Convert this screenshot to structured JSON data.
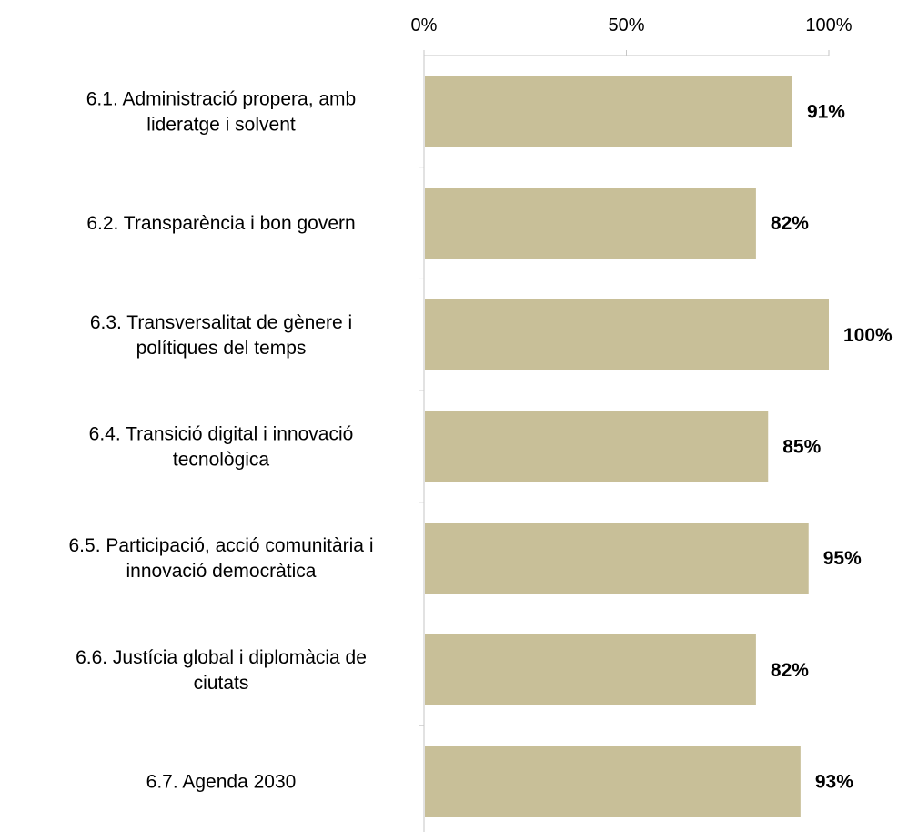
{
  "chart_data": {
    "type": "bar",
    "orientation": "horizontal",
    "categories": [
      [
        "6.1.  Administració propera, amb",
        "lideratge i solvent"
      ],
      [
        "6.2. Transparència i bon govern"
      ],
      [
        "6.3. Transversalitat de gènere i",
        "polítiques del temps"
      ],
      [
        "6.4. Transició digital i innovació",
        "tecnològica"
      ],
      [
        "6.5. Participació, acció comunitària i",
        "innovació democràtica"
      ],
      [
        "6.6. Justícia global i diplomàcia de",
        "ciutats"
      ],
      [
        "6.7. Agenda 2030"
      ]
    ],
    "values": [
      91,
      82,
      100,
      85,
      95,
      82,
      93
    ],
    "data_labels": [
      "91%",
      "82%",
      "100%",
      "85%",
      "95%",
      "82%",
      "93%"
    ],
    "xlim": [
      0,
      100
    ],
    "xticks": [
      0,
      50,
      100
    ],
    "xtick_labels": [
      "0%",
      "50%",
      "100%"
    ],
    "x_axis_position": "top",
    "grid": false,
    "legend": "none",
    "title": "",
    "xlabel": "",
    "ylabel": "",
    "colors": {
      "bar": "#c8bf98",
      "axis": "#c6c6c6",
      "text": "#000000"
    }
  }
}
